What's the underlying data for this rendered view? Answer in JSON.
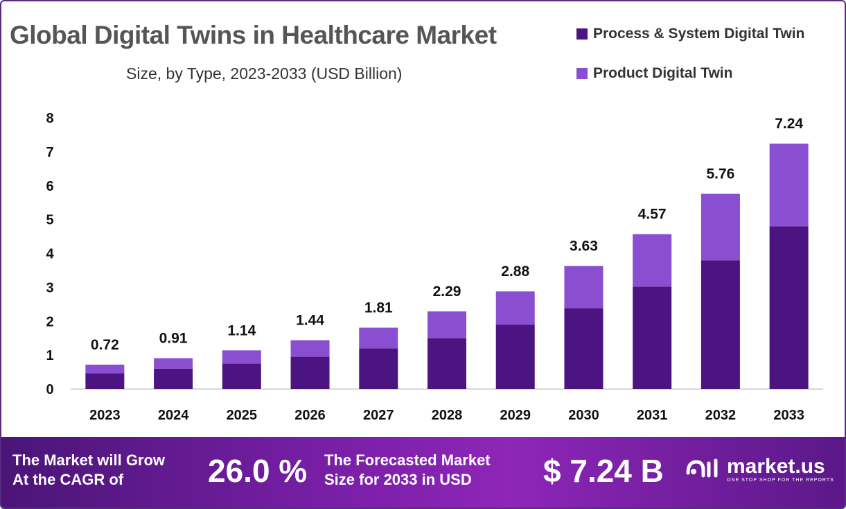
{
  "colors": {
    "process": "#4b1481",
    "product": "#8a4fd0",
    "axis": "#cccccc",
    "text": "#111111"
  },
  "header": {
    "title": "Global Digital Twins in Healthcare Market",
    "subtitle": "Size, by Type, 2023-2033 (USD Billion)"
  },
  "legend": {
    "items": [
      {
        "label": "Process & System Digital Twin"
      },
      {
        "label": "Product Digital Twin"
      }
    ]
  },
  "chart_data": {
    "type": "bar",
    "stacked": true,
    "title": "Global Digital Twins in Healthcare Market",
    "subtitle": "Size, by Type, 2023-2033 (USD Billion)",
    "xlabel": "",
    "ylabel": "",
    "ylim": [
      0,
      8
    ],
    "yticks": [
      0,
      1,
      2,
      3,
      4,
      5,
      6,
      7,
      8
    ],
    "categories": [
      "2023",
      "2024",
      "2025",
      "2026",
      "2027",
      "2028",
      "2029",
      "2030",
      "2031",
      "2032",
      "2033"
    ],
    "series": [
      {
        "name": "Process & System Digital Twin",
        "values": [
          0.46,
          0.6,
          0.75,
          0.95,
          1.2,
          1.5,
          1.9,
          2.39,
          3.02,
          3.8,
          4.8
        ]
      },
      {
        "name": "Product Digital Twin",
        "values": [
          0.26,
          0.31,
          0.39,
          0.49,
          0.61,
          0.79,
          0.98,
          1.24,
          1.55,
          1.96,
          2.44
        ]
      }
    ],
    "totals": [
      "0.72",
      "0.91",
      "1.14",
      "1.44",
      "1.81",
      "2.29",
      "2.88",
      "3.63",
      "4.57",
      "5.76",
      "7.24"
    ],
    "legend_position": "top-right",
    "grid": false
  },
  "footer": {
    "cagr_label_line1": "The Market will Grow",
    "cagr_label_line2": "At the CAGR of",
    "cagr_value": "26.0 %",
    "forecast_label_line1": "The Forecasted Market",
    "forecast_label_line2": "Size for 2033 in USD",
    "forecast_value": "$ 7.24 B",
    "brand": "market.us",
    "tagline": "ONE STOP SHOP FOR THE REPORTS"
  }
}
